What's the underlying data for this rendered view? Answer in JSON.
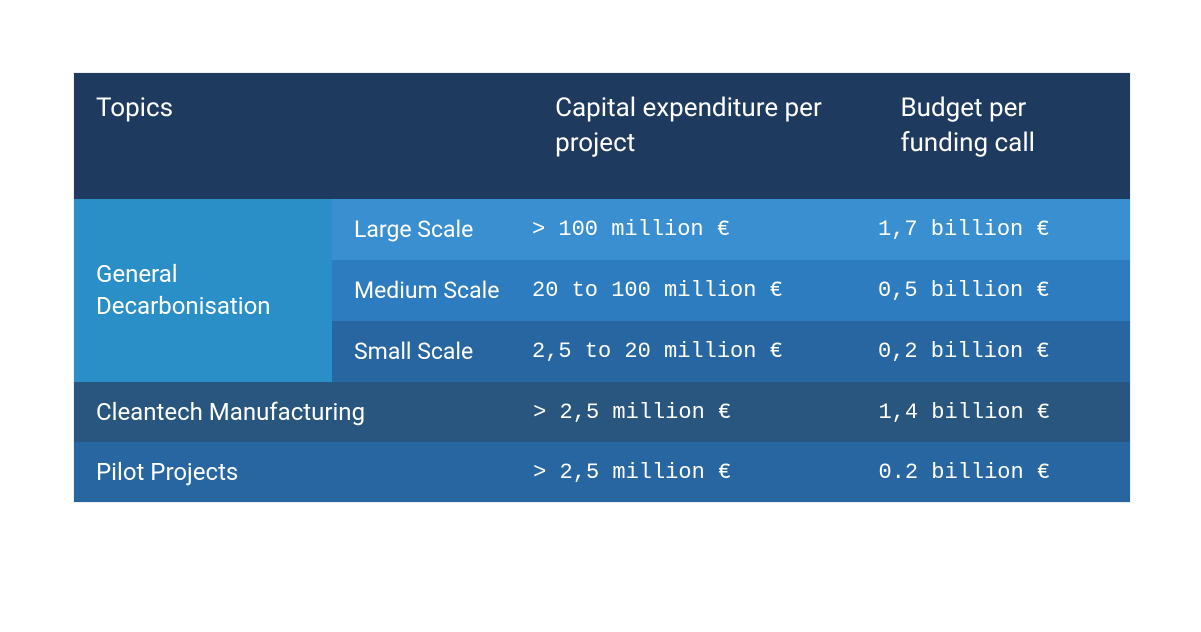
{
  "type": "table",
  "background_color": "#ffffff",
  "header": {
    "bg": "#1f3a5f",
    "text_color": "#ffffff",
    "font_size": 26,
    "columns": {
      "topics": "Topics",
      "capex": "Capital expenditure per project",
      "budget": "Budget per funding call"
    }
  },
  "columns_widths": {
    "topics": 460,
    "subtopic_label_col": 260,
    "scale_col": 200,
    "capex": 346,
    "budget": 252
  },
  "data_font": {
    "family": "Consolas, Courier New, monospace",
    "size": 22,
    "color": "#ffffff"
  },
  "label_font": {
    "size": 24,
    "color": "#ffffff"
  },
  "rows": {
    "general_decarb": {
      "label": "General Decarbonisation",
      "label_bg": "#2b8fc7",
      "scales": [
        {
          "name": "Large Scale",
          "capex": "> 100 million €",
          "budget": "1,7 billion €",
          "bg": "#3a8fd1"
        },
        {
          "name": "Medium Scale",
          "capex": "20 to 100 million €",
          "budget": "0,5 billion €",
          "bg": "#2c7cbf"
        },
        {
          "name": "Small Scale",
          "capex": "2,5 to 20 million €",
          "budget": "0,2 billion €",
          "bg": "#2766a1"
        }
      ]
    },
    "cleantech": {
      "label": "Cleantech Manufacturing",
      "capex": "> 2,5 million €",
      "budget": "1,4 billion €",
      "bg": "#29567f"
    },
    "pilot": {
      "label": "Pilot Projects",
      "capex": "> 2,5 million €",
      "budget": "0.2 billion €",
      "bg": "#2766a1"
    }
  }
}
